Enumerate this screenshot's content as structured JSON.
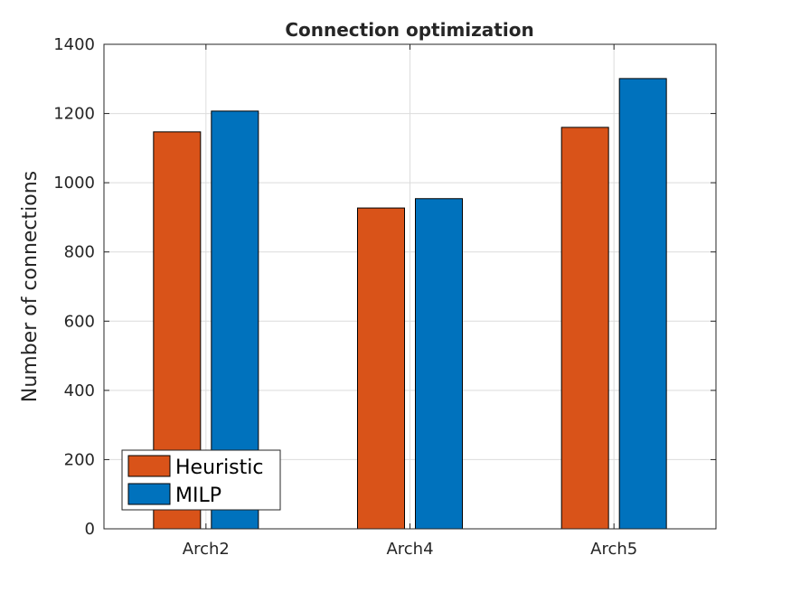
{
  "chart_data": {
    "type": "bar",
    "title": "Connection optimization",
    "xlabel": "",
    "ylabel": "Number of connections",
    "categories": [
      "Arch2",
      "Arch4",
      "Arch5"
    ],
    "series": [
      {
        "name": "Heuristic",
        "values": [
          1147,
          927,
          1160
        ],
        "color": "#D95319"
      },
      {
        "name": "MILP",
        "values": [
          1207,
          954,
          1301
        ],
        "color": "#0072BD"
      }
    ],
    "ylim": [
      0,
      1400
    ],
    "yticks": [
      "0",
      "200",
      "400",
      "600",
      "800",
      "1000",
      "1200",
      "1400"
    ],
    "grid": true,
    "legend_position": "bottom-left"
  }
}
